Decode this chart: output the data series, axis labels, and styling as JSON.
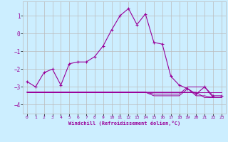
{
  "xlabel": "Windchill (Refroidissement éolien,°C)",
  "x": [
    0,
    1,
    2,
    3,
    4,
    5,
    6,
    7,
    8,
    9,
    10,
    11,
    12,
    13,
    14,
    15,
    16,
    17,
    18,
    19,
    20,
    21,
    22,
    23
  ],
  "line1": [
    -2.7,
    -3.0,
    -2.2,
    -2.0,
    -2.9,
    -1.7,
    -1.6,
    -1.6,
    -1.3,
    -0.7,
    0.2,
    1.0,
    1.4,
    0.5,
    1.1,
    -0.5,
    -0.6,
    -2.4,
    -2.9,
    -3.1,
    -3.4,
    -3.0,
    -3.5,
    -3.5
  ],
  "line2": [
    -3.3,
    -3.3,
    -3.3,
    -3.3,
    -3.3,
    -3.3,
    -3.3,
    -3.3,
    -3.3,
    -3.3,
    -3.3,
    -3.3,
    -3.3,
    -3.3,
    -3.3,
    -3.3,
    -3.3,
    -3.3,
    -3.3,
    -3.3,
    -3.3,
    -3.3,
    -3.3,
    -3.3
  ],
  "line3": [
    -3.3,
    -3.3,
    -3.3,
    -3.3,
    -3.3,
    -3.3,
    -3.3,
    -3.3,
    -3.3,
    -3.3,
    -3.3,
    -3.3,
    -3.3,
    -3.3,
    -3.3,
    -3.3,
    -3.3,
    -3.3,
    -3.3,
    -3.3,
    -3.3,
    -3.6,
    -3.6,
    -3.6
  ],
  "line4": [
    -3.3,
    -3.3,
    -3.3,
    -3.3,
    -3.3,
    -3.3,
    -3.3,
    -3.3,
    -3.3,
    -3.3,
    -3.3,
    -3.3,
    -3.3,
    -3.3,
    -3.3,
    -3.4,
    -3.4,
    -3.4,
    -3.4,
    -3.0,
    -3.0,
    -3.0,
    -3.6,
    -3.6
  ],
  "line5": [
    -3.3,
    -3.3,
    -3.3,
    -3.3,
    -3.3,
    -3.3,
    -3.3,
    -3.3,
    -3.3,
    -3.3,
    -3.3,
    -3.3,
    -3.3,
    -3.3,
    -3.3,
    -3.5,
    -3.5,
    -3.5,
    -3.5,
    -3.1,
    -3.5,
    -3.5,
    -3.6,
    -3.6
  ],
  "bg_color": "#cceeff",
  "grid_color": "#bbbbbb",
  "line_color": "#990099",
  "ylim": [
    -4.5,
    1.8
  ],
  "yticks": [
    -4,
    -3,
    -2,
    -1,
    0,
    1
  ],
  "xticks": [
    0,
    1,
    2,
    3,
    4,
    5,
    6,
    7,
    8,
    9,
    10,
    11,
    12,
    13,
    14,
    15,
    16,
    17,
    18,
    19,
    20,
    21,
    22,
    23
  ]
}
